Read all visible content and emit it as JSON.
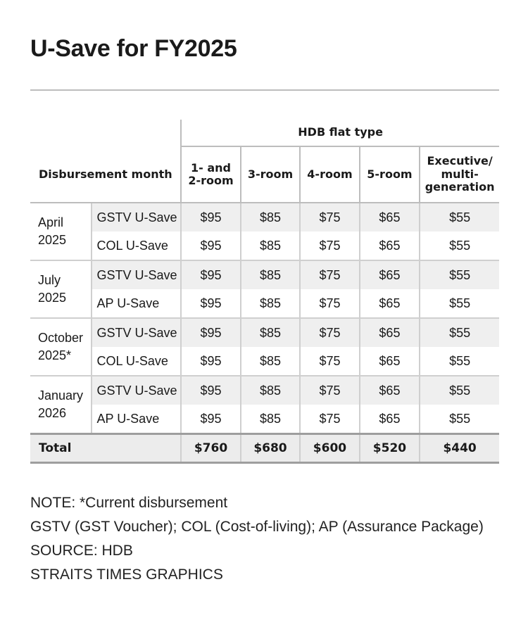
{
  "title": "U-Save for FY2025",
  "table": {
    "header_group": "HDB flat type",
    "row_header": "Disbursement month",
    "columns": [
      "1- and\n2-room",
      "3-room",
      "4-room",
      "5-room",
      "Executive/\nmulti-\ngeneration"
    ],
    "months": [
      {
        "label": "April\n2025",
        "rows": [
          {
            "program": "GSTV U-Save",
            "values": [
              "$95",
              "$85",
              "$75",
              "$65",
              "$55"
            ]
          },
          {
            "program": "COL U-Save",
            "values": [
              "$95",
              "$85",
              "$75",
              "$65",
              "$55"
            ]
          }
        ]
      },
      {
        "label": "July\n2025",
        "rows": [
          {
            "program": "GSTV U-Save",
            "values": [
              "$95",
              "$85",
              "$75",
              "$65",
              "$55"
            ]
          },
          {
            "program": "AP U-Save",
            "values": [
              "$95",
              "$85",
              "$75",
              "$65",
              "$55"
            ]
          }
        ]
      },
      {
        "label": "October\n2025*",
        "rows": [
          {
            "program": "GSTV U-Save",
            "values": [
              "$95",
              "$85",
              "$75",
              "$65",
              "$55"
            ]
          },
          {
            "program": "COL U-Save",
            "values": [
              "$95",
              "$85",
              "$75",
              "$65",
              "$55"
            ]
          }
        ]
      },
      {
        "label": "January\n2026",
        "rows": [
          {
            "program": "GSTV U-Save",
            "values": [
              "$95",
              "$85",
              "$75",
              "$65",
              "$55"
            ]
          },
          {
            "program": "AP U-Save",
            "values": [
              "$95",
              "$85",
              "$75",
              "$65",
              "$55"
            ]
          }
        ]
      }
    ],
    "total": {
      "label": "Total",
      "values": [
        "$760",
        "$680",
        "$600",
        "$520",
        "$440"
      ]
    }
  },
  "notes": [
    "NOTE: *Current disbursement",
    "GSTV (GST Voucher); COL (Cost-of-living); AP (Assurance Package)",
    "SOURCE: HDB",
    "STRAITS TIMES GRAPHICS"
  ]
}
